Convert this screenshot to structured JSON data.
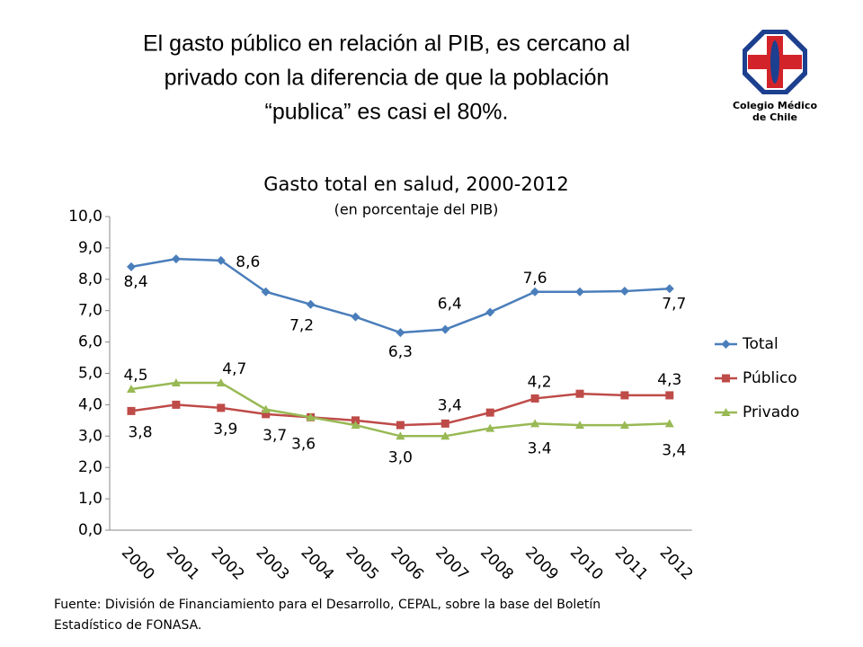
{
  "heading": [
    "El gasto público en relación al PIB, es cercano al",
    "privado con la diferencia de que la población",
    "“publica” es casi el  80%."
  ],
  "logo": [
    "Colegio Médico",
    "de Chile"
  ],
  "source": [
    "Fuente: División de Financiamiento para el Desarrollo, CEPAL, sobre la base del Boletín",
    "Estadístico de FONASA."
  ],
  "chart_data": {
    "type": "line",
    "title": "Gasto total en salud, 2000-2012",
    "subtitle": "(en porcentaje del PIB)",
    "categories": [
      "2000",
      "2001",
      "2002",
      "2003",
      "2004",
      "2005",
      "2006",
      "2007",
      "2008",
      "2009",
      "2010",
      "2011",
      "2012"
    ],
    "ylim": [
      0,
      10
    ],
    "yticks": [
      {
        "value": 0,
        "label": "0,0"
      },
      {
        "value": 1,
        "label": "1,0"
      },
      {
        "value": 2,
        "label": "2,0"
      },
      {
        "value": 3,
        "label": "3,0"
      },
      {
        "value": 4,
        "label": "4,0"
      },
      {
        "value": 5,
        "label": "5,0"
      },
      {
        "value": 6,
        "label": "6,0"
      },
      {
        "value": 7,
        "label": "7,0"
      },
      {
        "value": 8,
        "label": "8,0"
      },
      {
        "value": 9,
        "label": "9,0"
      },
      {
        "value": 10,
        "label": "10,0"
      }
    ],
    "legend": "right",
    "series": [
      {
        "name": "Total",
        "color": "#4a7ebb",
        "marker": "diamond",
        "values": [
          8.4,
          8.65,
          8.6,
          7.6,
          7.2,
          6.8,
          6.3,
          6.4,
          6.95,
          7.6,
          7.6,
          7.62,
          7.7
        ],
        "value_labels": [
          "8,4",
          null,
          "8,6",
          null,
          "7,2",
          null,
          "6,3",
          "6,4",
          null,
          "7,6",
          null,
          null,
          "7,7"
        ]
      },
      {
        "name": "Público",
        "color": "#be4b48",
        "marker": "square",
        "values": [
          3.8,
          4.0,
          3.9,
          3.7,
          3.6,
          3.5,
          3.35,
          3.4,
          3.75,
          4.2,
          4.35,
          4.3,
          4.3
        ],
        "value_labels": [
          "3,8",
          null,
          "3,9",
          "3,7",
          null,
          null,
          null,
          "3,4",
          null,
          "4,2",
          null,
          null,
          "4,3"
        ]
      },
      {
        "name": "Privado",
        "color": "#98b954",
        "marker": "triangle",
        "values": [
          4.5,
          4.7,
          4.7,
          3.85,
          3.6,
          3.35,
          3.0,
          3.0,
          3.25,
          3.4,
          3.35,
          3.35,
          3.4
        ],
        "value_labels": [
          "4,5",
          null,
          "4,7",
          null,
          "3,6",
          null,
          "3,0",
          null,
          null,
          "3.4",
          null,
          null,
          "3,4"
        ]
      }
    ]
  }
}
